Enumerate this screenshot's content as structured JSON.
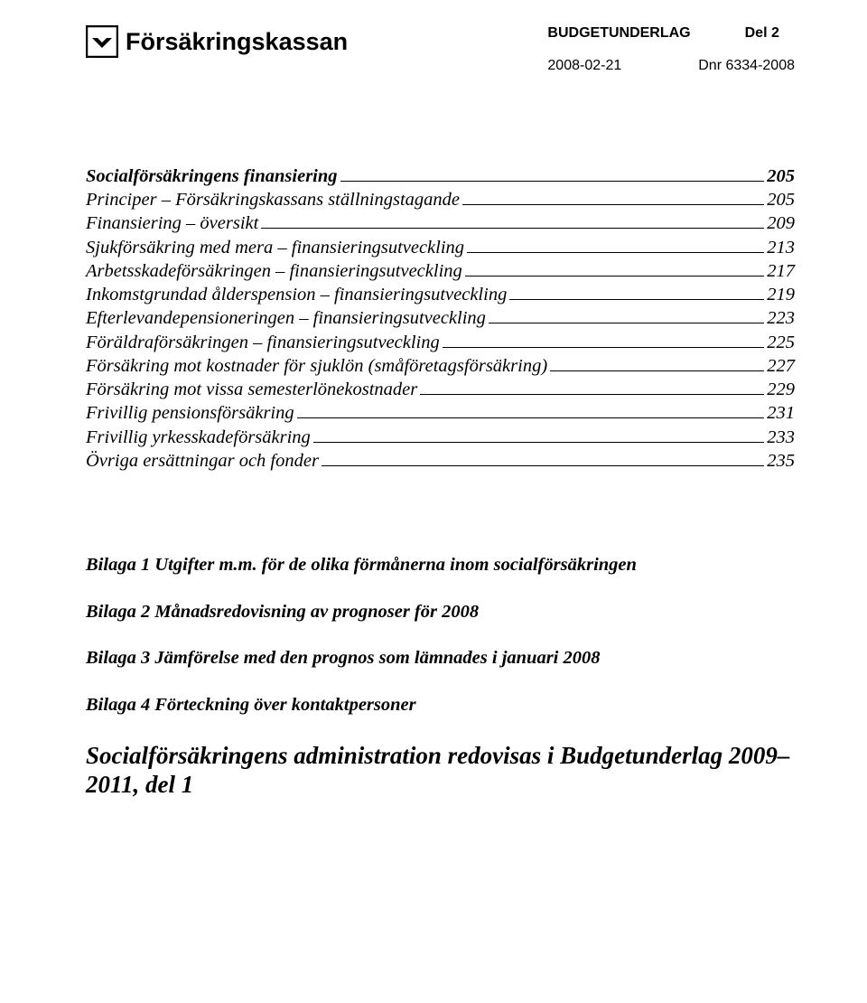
{
  "header": {
    "logo_text": "Försäkringskassan",
    "doc_type": "BUDGETUNDERLAG",
    "part": "Del 2",
    "date": "2008-02-21",
    "dnr": "Dnr 6334-2008"
  },
  "toc": [
    {
      "label": "Socialförsäkringens finansiering",
      "page": "205",
      "bold": true
    },
    {
      "label": "Principer – Försäkringskassans ställningstagande",
      "page": "205",
      "bold": false
    },
    {
      "label": "Finansiering – översikt",
      "page": "209",
      "bold": false
    },
    {
      "label": "Sjukförsäkring med mera – finansieringsutveckling",
      "page": "213",
      "bold": false
    },
    {
      "label": "Arbetsskadeförsäkringen – finansieringsutveckling",
      "page": "217",
      "bold": false
    },
    {
      "label": "Inkomstgrundad ålderspension – finansieringsutveckling",
      "page": "219",
      "bold": false
    },
    {
      "label": "Efterlevandepensioneringen – finansieringsutveckling",
      "page": "223",
      "bold": false
    },
    {
      "label": "Föräldraförsäkringen – finansieringsutveckling",
      "page": "225",
      "bold": false
    },
    {
      "label": "Försäkring mot kostnader för sjuklön (småföretagsförsäkring)",
      "page": "227",
      "bold": false
    },
    {
      "label": "Försäkring mot vissa semesterlönekostnader",
      "page": "229",
      "bold": false
    },
    {
      "label": "Frivillig pensionsförsäkring",
      "page": "231",
      "bold": false
    },
    {
      "label": "Frivillig yrkesskadeförsäkring",
      "page": "233",
      "bold": false
    },
    {
      "label": "Övriga ersättningar och fonder",
      "page": "235",
      "bold": false
    }
  ],
  "appendix": {
    "b1": "Bilaga 1 Utgifter m.m. för de olika förmånerna inom socialförsäkringen",
    "b2": "Bilaga 2 Månadsredovisning av prognoser för 2008",
    "b3": "Bilaga 3 Jämförelse med den prognos som lämnades i januari 2008",
    "b4": "Bilaga 4 Förteckning över kontaktpersoner"
  },
  "footer_title": "Socialförsäkringens administration redovisas i Budgetunderlag 2009–2011, del 1"
}
